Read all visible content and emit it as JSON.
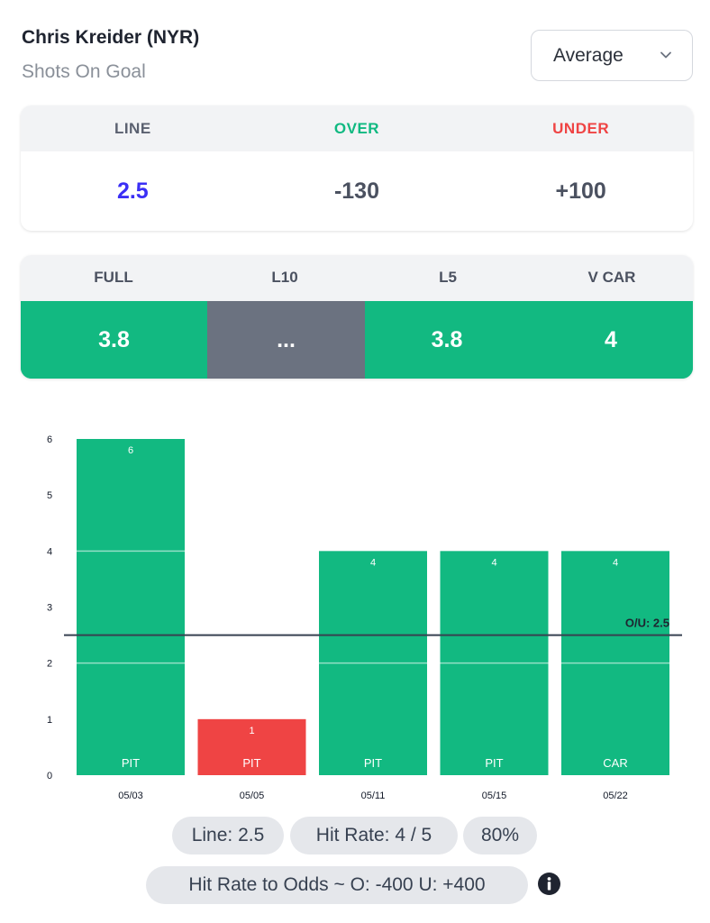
{
  "header": {
    "player": "Chris Kreider (NYR)",
    "stat": "Shots On Goal",
    "dropdown_value": "Average",
    "dropdown_icon": "chevron-down-icon"
  },
  "line_card": {
    "labels": {
      "line": "LINE",
      "over": "OVER",
      "under": "UNDER"
    },
    "values": {
      "line": "2.5",
      "over": "-130",
      "under": "+100"
    },
    "colors": {
      "line_label": "#4b5563",
      "over_label": "#10b981",
      "under_label": "#ef4444",
      "line_value": "#3b2ff5",
      "odds_value": "#4b5160"
    }
  },
  "averages": {
    "labels": [
      "FULL",
      "L10",
      "L5",
      "V CAR"
    ],
    "values": [
      "3.8",
      "...",
      "3.8",
      "4"
    ],
    "colors": {
      "good": "#12b981",
      "neutral": "#6b7280"
    }
  },
  "chart_data": {
    "type": "bar",
    "categories": [
      "05/03",
      "05/05",
      "05/11",
      "05/15",
      "05/22"
    ],
    "values": [
      6,
      1,
      4,
      4,
      4
    ],
    "opponents": [
      "PIT",
      "PIT",
      "PIT",
      "PIT",
      "CAR"
    ],
    "bar_colors": [
      "#12b981",
      "#ef4444",
      "#12b981",
      "#12b981",
      "#12b981"
    ],
    "ylim": [
      0,
      6
    ],
    "yticks": [
      0,
      1,
      2,
      3,
      4,
      5,
      6
    ],
    "line_value": 2.5,
    "line_label": "O/U: 2.5",
    "grid": false
  },
  "footer": {
    "line_pill": "Line: 2.5",
    "hit_rate_pill": "Hit Rate: 4 / 5",
    "pct_pill": "80%",
    "odds_pill": "Hit Rate to Odds ~ O: -400 U: +400",
    "info_icon": "info-icon"
  }
}
